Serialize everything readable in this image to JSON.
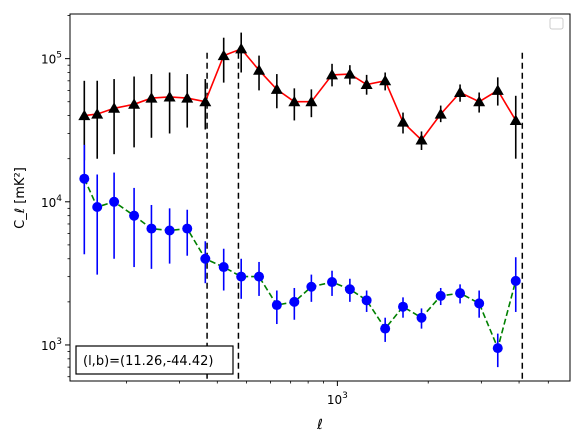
{
  "chart_data": {
    "type": "scatter",
    "title": "",
    "xlabel": "ℓ",
    "ylabel": "C_ℓ [mK²]",
    "xscale": "log",
    "yscale": "log",
    "xlim": [
      130,
      5900
    ],
    "ylim": [
      560,
      205000
    ],
    "x_tick_labels": [
      {
        "value": 1000,
        "base": "10",
        "exp": "3"
      }
    ],
    "y_tick_labels": [
      {
        "value": 1000,
        "base": "10",
        "exp": "3"
      },
      {
        "value": 10000,
        "base": "10",
        "exp": "4"
      },
      {
        "value": 100000,
        "base": "10",
        "exp": "5"
      }
    ],
    "legend": "top-right (empty)",
    "grid": false,
    "annotation": "(l,b)=(11.26,-44.42)",
    "vlines": [
      370,
      470,
      4100
    ],
    "series": [
      {
        "marker": "triangle",
        "marker_color": "#000000",
        "errorbar_color": "#000000",
        "line_color": "#ff0000",
        "line_style": "solid",
        "points": [
          {
            "x": 145,
            "y": 40000,
            "lo": 19500,
            "hi": 70000
          },
          {
            "x": 160,
            "y": 41000,
            "lo": 20000,
            "hi": 70000
          },
          {
            "x": 182,
            "y": 45000,
            "lo": 21500,
            "hi": 72000
          },
          {
            "x": 212,
            "y": 48000,
            "lo": 24000,
            "hi": 75000
          },
          {
            "x": 242,
            "y": 53000,
            "lo": 28000,
            "hi": 78000
          },
          {
            "x": 278,
            "y": 54000,
            "lo": 30000,
            "hi": 80000
          },
          {
            "x": 318,
            "y": 53000,
            "lo": 33000,
            "hi": 78000
          },
          {
            "x": 365,
            "y": 50000,
            "lo": 32000,
            "hi": 72000
          },
          {
            "x": 420,
            "y": 105000,
            "lo": 68000,
            "hi": 140000
          },
          {
            "x": 480,
            "y": 117000,
            "lo": 80000,
            "hi": 152000
          },
          {
            "x": 550,
            "y": 83000,
            "lo": 60000,
            "hi": 105000
          },
          {
            "x": 630,
            "y": 61000,
            "lo": 45000,
            "hi": 78000
          },
          {
            "x": 720,
            "y": 50000,
            "lo": 37000,
            "hi": 62000
          },
          {
            "x": 820,
            "y": 50000,
            "lo": 39000,
            "hi": 61000
          },
          {
            "x": 960,
            "y": 77000,
            "lo": 64000,
            "hi": 92000
          },
          {
            "x": 1100,
            "y": 78000,
            "lo": 66000,
            "hi": 90000
          },
          {
            "x": 1250,
            "y": 66000,
            "lo": 56000,
            "hi": 77000
          },
          {
            "x": 1440,
            "y": 70000,
            "lo": 60000,
            "hi": 80000
          },
          {
            "x": 1650,
            "y": 36000,
            "lo": 30000,
            "hi": 42000
          },
          {
            "x": 1900,
            "y": 27000,
            "lo": 23000,
            "hi": 31000
          },
          {
            "x": 2200,
            "y": 41000,
            "lo": 36000,
            "hi": 47000
          },
          {
            "x": 2550,
            "y": 58000,
            "lo": 50000,
            "hi": 66000
          },
          {
            "x": 2950,
            "y": 50000,
            "lo": 42000,
            "hi": 58000
          },
          {
            "x": 3400,
            "y": 60000,
            "lo": 47000,
            "hi": 74000
          },
          {
            "x": 3900,
            "y": 37000,
            "lo": 20000,
            "hi": 55000
          }
        ]
      },
      {
        "marker": "circle",
        "marker_color": "#0000ff",
        "errorbar_color": "#0000ff",
        "line_color": "#008000",
        "line_style": "dashed",
        "points": [
          {
            "x": 145,
            "y": 14500,
            "lo": 4300,
            "hi": 25000
          },
          {
            "x": 160,
            "y": 9200,
            "lo": 3100,
            "hi": 15500
          },
          {
            "x": 182,
            "y": 10000,
            "lo": 4000,
            "hi": 16000
          },
          {
            "x": 212,
            "y": 8000,
            "lo": 3500,
            "hi": 12500
          },
          {
            "x": 242,
            "y": 6500,
            "lo": 3400,
            "hi": 9500
          },
          {
            "x": 278,
            "y": 6300,
            "lo": 3700,
            "hi": 9000
          },
          {
            "x": 318,
            "y": 6500,
            "lo": 4200,
            "hi": 8800
          },
          {
            "x": 365,
            "y": 4000,
            "lo": 2700,
            "hi": 5300
          },
          {
            "x": 420,
            "y": 3500,
            "lo": 2400,
            "hi": 4700
          },
          {
            "x": 480,
            "y": 3000,
            "lo": 2100,
            "hi": 4000
          },
          {
            "x": 550,
            "y": 3000,
            "lo": 2200,
            "hi": 3800
          },
          {
            "x": 630,
            "y": 1900,
            "lo": 1400,
            "hi": 2400
          },
          {
            "x": 720,
            "y": 2000,
            "lo": 1500,
            "hi": 2500
          },
          {
            "x": 820,
            "y": 2550,
            "lo": 2000,
            "hi": 3100
          },
          {
            "x": 960,
            "y": 2750,
            "lo": 2200,
            "hi": 3300
          },
          {
            "x": 1100,
            "y": 2450,
            "lo": 2000,
            "hi": 2900
          },
          {
            "x": 1250,
            "y": 2050,
            "lo": 1700,
            "hi": 2400
          },
          {
            "x": 1440,
            "y": 1300,
            "lo": 1050,
            "hi": 1550
          },
          {
            "x": 1650,
            "y": 1850,
            "lo": 1550,
            "hi": 2150
          },
          {
            "x": 1900,
            "y": 1550,
            "lo": 1300,
            "hi": 1800
          },
          {
            "x": 2200,
            "y": 2200,
            "lo": 1900,
            "hi": 2500
          },
          {
            "x": 2550,
            "y": 2300,
            "lo": 1950,
            "hi": 2650
          },
          {
            "x": 2950,
            "y": 1950,
            "lo": 1550,
            "hi": 2400
          },
          {
            "x": 3400,
            "y": 950,
            "lo": 700,
            "hi": 1200
          },
          {
            "x": 3900,
            "y": 2800,
            "lo": 1700,
            "hi": 4100
          }
        ]
      }
    ]
  }
}
